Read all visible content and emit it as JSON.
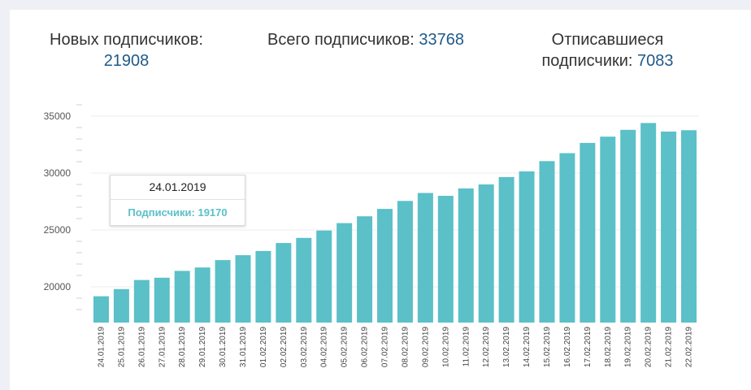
{
  "stats": {
    "new": {
      "label": "Новых подписчиков:",
      "value": "21908"
    },
    "total": {
      "label": "Всего подписчиков:",
      "value": "33768"
    },
    "unsub": {
      "label_line1": "Отписавшиеся",
      "label_line2": "подписчики:",
      "value": "7083"
    }
  },
  "tooltip": {
    "date": "24.01.2019",
    "label": "Подписчики:",
    "value": "19170"
  },
  "colors": {
    "bar": "#5bc0c8",
    "accent": "#1f5a88"
  },
  "chart_data": {
    "type": "bar",
    "categories": [
      "24.01.2019",
      "25.01.2019",
      "26.01.2019",
      "27.01.2019",
      "28.01.2019",
      "29.01.2019",
      "30.01.2019",
      "31.01.2019",
      "01.02.2019",
      "02.02.2019",
      "03.02.2019",
      "04.02.2019",
      "05.02.2019",
      "06.02.2019",
      "07.02.2019",
      "08.02.2019",
      "09.02.2019",
      "10.02.2019",
      "11.02.2019",
      "12.02.2019",
      "13.02.2019",
      "14.02.2019",
      "15.02.2019",
      "16.02.2019",
      "17.02.2019",
      "18.02.2019",
      "19.02.2019",
      "20.02.2019",
      "21.02.2019",
      "22.02.2019"
    ],
    "series": [
      {
        "name": "Подписчики",
        "values": [
          19170,
          19800,
          20600,
          20800,
          21400,
          21700,
          22350,
          22780,
          23150,
          23850,
          24300,
          24950,
          25600,
          26200,
          26850,
          27550,
          28250,
          28000,
          28650,
          29000,
          29650,
          30150,
          31050,
          31750,
          32650,
          33200,
          33800,
          34400,
          33650,
          33768
        ]
      }
    ],
    "yticks": [
      20000,
      25000,
      30000,
      35000
    ],
    "ylim": [
      17000,
      37000
    ],
    "grid": true
  }
}
